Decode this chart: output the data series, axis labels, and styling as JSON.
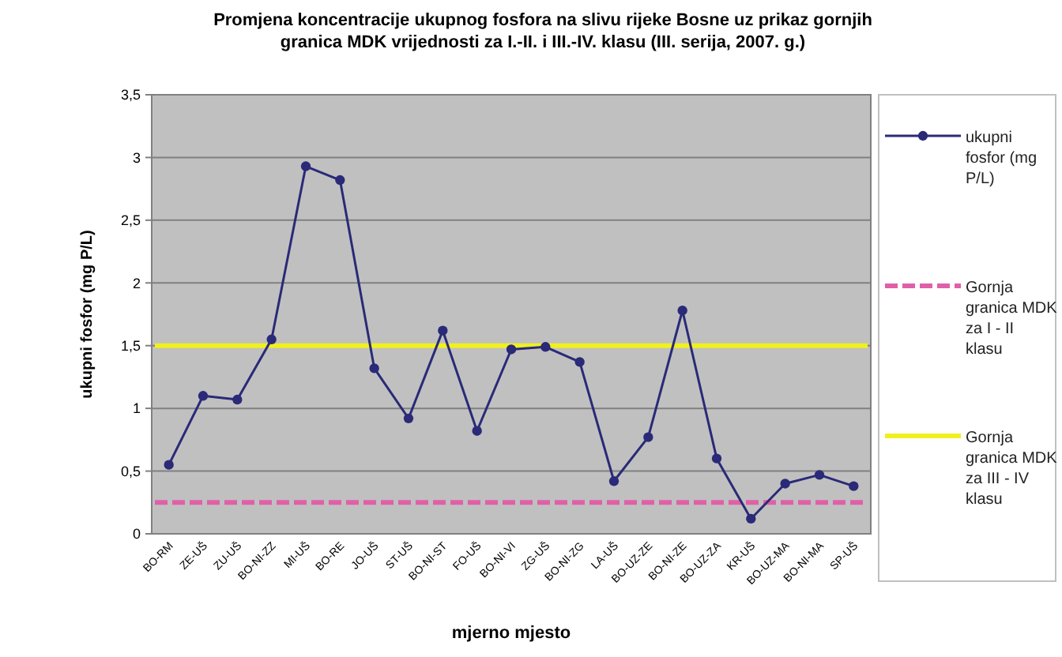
{
  "chart_data": {
    "type": "line",
    "title": "Promjena koncentracije ukupnog fosfora na slivu rijeke Bosne uz prikaz gornjih granica MDK vrijednosti za I.-II. i III.-IV. klasu (III. serija, 2007. g.)",
    "xlabel": "mjerno mjesto",
    "ylabel": "ukupni fosfor (mg P/L)",
    "categories": [
      "BO-RM",
      "ZE-UŠ",
      "ZU-UŠ",
      "BO-NI-ZZ",
      "MI-UŠ",
      "BO-RE",
      "JO-UŠ",
      "ST-UŠ",
      "BO-NI-ST",
      "FO-UŠ",
      "BO-NI-VI",
      "ZG-UŠ",
      "BO-NI-ZG",
      "LA-UŠ",
      "BO-UZ-ZE",
      "BO-NI-ZE",
      "BO-UZ-ZA",
      "KR-UŠ",
      "BO-UZ-MA",
      "BO-NI-MA",
      "SP-UŠ"
    ],
    "series": [
      {
        "name": "ukupni fosfor (mg P/L)",
        "color": "#2a2a78",
        "values": [
          0.55,
          1.1,
          1.07,
          1.55,
          2.93,
          2.82,
          1.32,
          0.92,
          1.62,
          0.82,
          1.47,
          1.49,
          1.37,
          0.42,
          0.77,
          1.78,
          0.6,
          0.12,
          0.4,
          0.47,
          0.38
        ]
      }
    ],
    "ref_lines": [
      {
        "axis": "y",
        "value": 0.25,
        "label": "Gornja granica MDK za I - II klasu",
        "color": "#e060a8",
        "line_style": "dashed"
      },
      {
        "axis": "y",
        "value": 1.5,
        "label": "Gornja granica MDK za III - IV klasu",
        "color": "#f0f020",
        "line_style": "solid"
      }
    ],
    "ylim": [
      0,
      3.5
    ],
    "yticks": [
      0,
      {
        "value": 0.5,
        "label": "0,5"
      },
      1,
      {
        "value": 1.5,
        "label": "1,5"
      },
      2,
      {
        "value": 2.5,
        "label": "2,5"
      },
      3,
      {
        "value": 3.5,
        "label": "3,5"
      }
    ],
    "grid": "y",
    "legend": "right",
    "marker": "circle",
    "line_style": "solid"
  }
}
